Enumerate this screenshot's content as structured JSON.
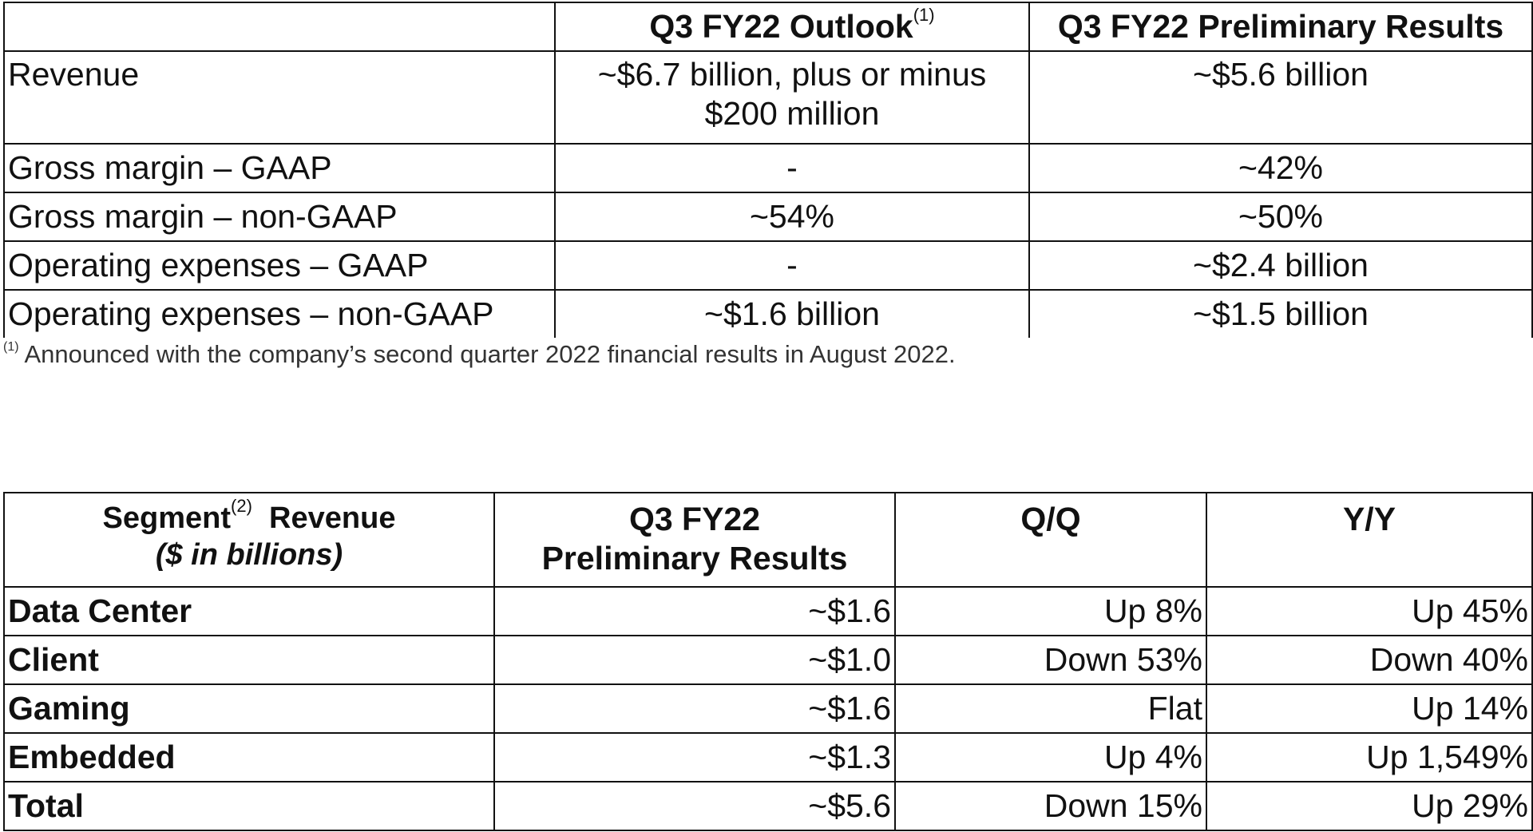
{
  "outlook_table": {
    "headers": [
      "",
      "Q3 FY22 Outlook",
      "Q3 FY22 Preliminary Results"
    ],
    "header_outlook_sup": "(1)",
    "rows": [
      {
        "label": "Revenue",
        "outlook": "~$6.7 billion, plus or minus $200 million",
        "prelim": "~$5.6 billion"
      },
      {
        "label": "Gross margin – GAAP",
        "outlook": "-",
        "prelim": "~42%"
      },
      {
        "label": "Gross margin – non-GAAP",
        "outlook": "~54%",
        "prelim": "~50%"
      },
      {
        "label": "Operating expenses – GAAP",
        "outlook": "-",
        "prelim": "~$2.4 billion"
      },
      {
        "label": "Operating expenses – non-GAAP",
        "outlook": "~$1.6 billion",
        "prelim": "~$1.5 billion"
      }
    ]
  },
  "footnote": {
    "sup": "(1)",
    "text": "Announced with the company’s second quarter 2022 financial results in August 2022."
  },
  "segment_table": {
    "header_segment": "Segment",
    "header_segment_sup": "(2)",
    "header_segment_rest": "Revenue",
    "header_segment_sub": "($ in billions)",
    "header_prelim_line1": "Q3 FY22",
    "header_prelim_line2": "Preliminary Results",
    "header_qq": "Q/Q",
    "header_yy": "Y/Y",
    "rows": [
      {
        "segment": "Data Center",
        "prelim": "~$1.6",
        "qq": "Up 8%",
        "yy": "Up 45%"
      },
      {
        "segment": "Client",
        "prelim": "~$1.0",
        "qq": "Down 53%",
        "yy": "Down 40%"
      },
      {
        "segment": "Gaming",
        "prelim": "~$1.6",
        "qq": "Flat",
        "yy": "Up 14%"
      },
      {
        "segment": "Embedded",
        "prelim": "~$1.3",
        "qq": "Up 4%",
        "yy": "Up 1,549%"
      },
      {
        "segment": "Total",
        "prelim": "~$5.6",
        "qq": "Down 15%",
        "yy": "Up 29%"
      }
    ]
  }
}
